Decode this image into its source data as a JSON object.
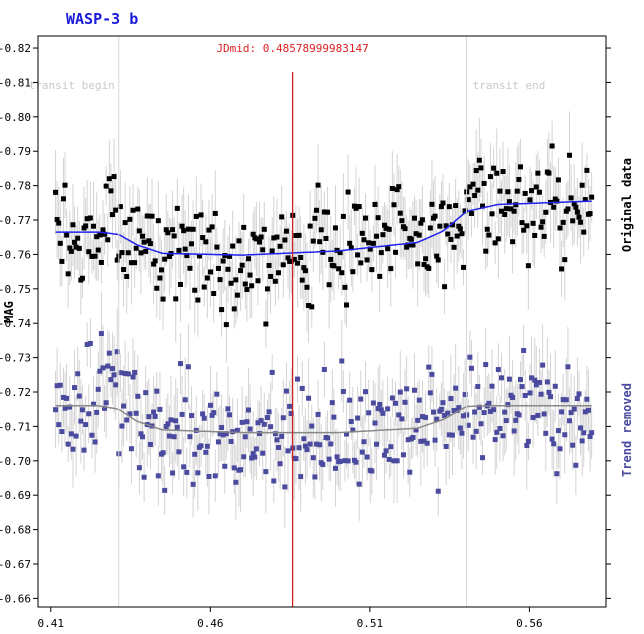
{
  "chart_data": {
    "type": "scatter",
    "title": "WASP-3 b",
    "xlabel": "",
    "ylabel": "MAG",
    "xlim": [
      0.406,
      0.584
    ],
    "ylim": [
      -0.8235,
      -0.6575
    ],
    "y_reversed": true,
    "grid": false,
    "x_ticks": [
      0.41,
      0.46,
      0.51,
      0.56
    ],
    "x_tick_labels": [
      "0.41",
      "0.46",
      "0.51",
      "0.56"
    ],
    "y_ticks": [
      -0.82,
      -0.81,
      -0.8,
      -0.79,
      -0.78,
      -0.77,
      -0.76,
      -0.75,
      -0.74,
      -0.73,
      -0.72,
      -0.71,
      -0.7,
      -0.69,
      -0.68,
      -0.67,
      -0.66
    ],
    "y_tick_labels": [
      "-0.82",
      "-0.81",
      "-0.80",
      "-0.79",
      "-0.78",
      "-0.77",
      "-0.76",
      "-0.75",
      "-0.74",
      "-0.73",
      "-0.72",
      "-0.71",
      "-0.70",
      "-0.69",
      "-0.68",
      "-0.67",
      "-0.66"
    ],
    "annotations": {
      "jdmid_label": "JDmid: 0.48578999983147",
      "jdmid_x": 0.48579,
      "transit_begin_label": "transit begin",
      "transit_begin_x": 0.4313,
      "transit_end_label": "transit end",
      "transit_end_x": 0.5403
    },
    "series": [
      {
        "name": "Original data",
        "color": "#000000",
        "error_color": "#d3d3d3",
        "trend_color": "#2222ee",
        "x_start": 0.4115,
        "x_end": 0.5795,
        "count": 340,
        "trend_x": [
          0.4115,
          0.425,
          0.4313,
          0.437,
          0.445,
          0.47,
          0.5,
          0.525,
          0.533,
          0.5403,
          0.55,
          0.5795
        ],
        "trend_y": [
          -0.7665,
          -0.7665,
          -0.7658,
          -0.7628,
          -0.7603,
          -0.7598,
          -0.761,
          -0.7635,
          -0.7668,
          -0.7725,
          -0.7745,
          -0.7755
        ],
        "scatter_sd": 0.0085,
        "min_y": -0.795,
        "max_y": -0.738,
        "seed": 12345
      },
      {
        "name": "Trend removed",
        "color": "#4a4a9f",
        "error_color": "#d3d3d3",
        "trend_color": "#888888",
        "x_start": 0.4115,
        "x_end": 0.5795,
        "count": 340,
        "trend_x": [
          0.4115,
          0.425,
          0.4313,
          0.437,
          0.445,
          0.47,
          0.5,
          0.525,
          0.533,
          0.5403,
          0.55,
          0.5795
        ],
        "trend_y": [
          -0.716,
          -0.716,
          -0.715,
          -0.7115,
          -0.709,
          -0.7082,
          -0.7082,
          -0.7095,
          -0.712,
          -0.7158,
          -0.716,
          -0.716
        ],
        "scatter_sd": 0.0085,
        "min_y": -0.737,
        "max_y": -0.681,
        "seed": 67890
      }
    ]
  }
}
